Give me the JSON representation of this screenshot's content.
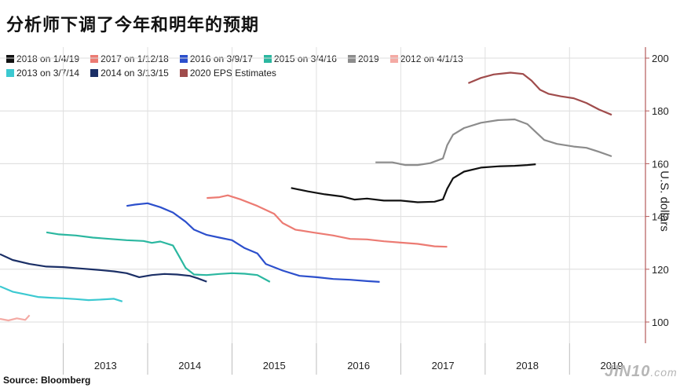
{
  "headline": "分析师下调了今年和明年的预期",
  "source": "Source: Bloomberg",
  "logo": "JIN10",
  "logo_suffix": ".com",
  "chart_data": {
    "type": "line",
    "title": "",
    "ylabel": "U.S. dollars",
    "xlabel": "",
    "ylim": [
      95,
      205
    ],
    "xlim": [
      2012.25,
      2019.9
    ],
    "y_ticks": [
      100,
      120,
      140,
      160,
      180,
      200
    ],
    "x_ticks": [
      "2013",
      "2014",
      "2015",
      "2016",
      "2017",
      "2018",
      "2019"
    ],
    "grid": true,
    "legend_position": "top-left",
    "series": [
      {
        "name": "2018  on 1/4/19",
        "color": "#111111",
        "points": [
          [
            2015.7,
            150.8
          ],
          [
            2015.9,
            149.5
          ],
          [
            2016.1,
            148.4
          ],
          [
            2016.3,
            147.6
          ],
          [
            2016.45,
            146.4
          ],
          [
            2016.6,
            146.8
          ],
          [
            2016.8,
            146.0
          ],
          [
            2017.0,
            146.0
          ],
          [
            2017.2,
            145.4
          ],
          [
            2017.4,
            145.6
          ],
          [
            2017.5,
            146.5
          ],
          [
            2017.55,
            150.5
          ],
          [
            2017.62,
            154.5
          ],
          [
            2017.75,
            157.0
          ],
          [
            2017.95,
            158.5
          ],
          [
            2018.15,
            159.0
          ],
          [
            2018.35,
            159.2
          ],
          [
            2018.5,
            159.5
          ],
          [
            2018.6,
            159.8
          ]
        ]
      },
      {
        "name": "2017  on 1/12/18",
        "color": "#ec7b73",
        "points": [
          [
            2014.7,
            147.0
          ],
          [
            2014.85,
            147.3
          ],
          [
            2014.95,
            148.0
          ],
          [
            2015.1,
            146.5
          ],
          [
            2015.3,
            144.0
          ],
          [
            2015.5,
            141.0
          ],
          [
            2015.6,
            137.5
          ],
          [
            2015.75,
            135.0
          ],
          [
            2015.95,
            134.0
          ],
          [
            2016.2,
            132.8
          ],
          [
            2016.4,
            131.5
          ],
          [
            2016.6,
            131.3
          ],
          [
            2016.8,
            130.6
          ],
          [
            2017.0,
            130.1
          ],
          [
            2017.2,
            129.6
          ],
          [
            2017.4,
            128.7
          ],
          [
            2017.55,
            128.5
          ]
        ]
      },
      {
        "name": "2016  on 3/9/17",
        "color": "#2c4fcc",
        "points": [
          [
            2013.75,
            144.0
          ],
          [
            2013.85,
            144.5
          ],
          [
            2014.0,
            145.0
          ],
          [
            2014.15,
            143.5
          ],
          [
            2014.3,
            141.5
          ],
          [
            2014.45,
            138.0
          ],
          [
            2014.55,
            135.0
          ],
          [
            2014.7,
            133.0
          ],
          [
            2014.85,
            132.0
          ],
          [
            2015.0,
            131.0
          ],
          [
            2015.15,
            128.0
          ],
          [
            2015.3,
            126.0
          ],
          [
            2015.4,
            122.0
          ],
          [
            2015.6,
            119.5
          ],
          [
            2015.8,
            117.5
          ],
          [
            2016.0,
            117.0
          ],
          [
            2016.2,
            116.3
          ],
          [
            2016.4,
            116.0
          ],
          [
            2016.6,
            115.5
          ],
          [
            2016.75,
            115.2
          ]
        ]
      },
      {
        "name": "2015  on 3/4/16",
        "color": "#2bb7a0",
        "points": [
          [
            2012.8,
            134.0
          ],
          [
            2012.95,
            133.2
          ],
          [
            2013.15,
            132.8
          ],
          [
            2013.35,
            132.0
          ],
          [
            2013.55,
            131.5
          ],
          [
            2013.75,
            131.0
          ],
          [
            2013.95,
            130.7
          ],
          [
            2014.05,
            130.0
          ],
          [
            2014.15,
            130.5
          ],
          [
            2014.3,
            129.0
          ],
          [
            2014.38,
            124.5
          ],
          [
            2014.45,
            120.5
          ],
          [
            2014.55,
            118.0
          ],
          [
            2014.7,
            117.8
          ],
          [
            2014.85,
            118.2
          ],
          [
            2015.0,
            118.5
          ],
          [
            2015.15,
            118.3
          ],
          [
            2015.3,
            117.8
          ],
          [
            2015.45,
            115.2
          ]
        ]
      },
      {
        "name": "2019",
        "color": "#8c8c8c",
        "points": [
          [
            2016.7,
            160.5
          ],
          [
            2016.9,
            160.5
          ],
          [
            2017.05,
            159.5
          ],
          [
            2017.2,
            159.5
          ],
          [
            2017.35,
            160.2
          ],
          [
            2017.5,
            162.0
          ],
          [
            2017.55,
            167.0
          ],
          [
            2017.62,
            171.0
          ],
          [
            2017.75,
            173.5
          ],
          [
            2017.95,
            175.5
          ],
          [
            2018.15,
            176.5
          ],
          [
            2018.35,
            176.8
          ],
          [
            2018.5,
            175.0
          ],
          [
            2018.6,
            172.0
          ],
          [
            2018.7,
            169.0
          ],
          [
            2018.85,
            167.5
          ],
          [
            2019.05,
            166.5
          ],
          [
            2019.2,
            166.0
          ],
          [
            2019.35,
            164.5
          ],
          [
            2019.5,
            162.8
          ]
        ]
      },
      {
        "name": "2012  on 4/1/13",
        "color": "#f4aaa4",
        "points": [
          [
            2012.25,
            101.2
          ],
          [
            2012.35,
            100.6
          ],
          [
            2012.45,
            101.4
          ],
          [
            2012.55,
            100.8
          ],
          [
            2012.6,
            102.6
          ]
        ]
      },
      {
        "name": "2013  on 3/7/14",
        "color": "#3cc9d1",
        "points": [
          [
            2012.25,
            113.5
          ],
          [
            2012.4,
            111.5
          ],
          [
            2012.55,
            110.5
          ],
          [
            2012.7,
            109.5
          ],
          [
            2012.85,
            109.2
          ],
          [
            2013.0,
            109.0
          ],
          [
            2013.15,
            108.7
          ],
          [
            2013.3,
            108.3
          ],
          [
            2013.45,
            108.5
          ],
          [
            2013.6,
            108.8
          ],
          [
            2013.7,
            107.8
          ]
        ]
      },
      {
        "name": "2014  on 3/13/15",
        "color": "#1b2f66",
        "points": [
          [
            2012.25,
            125.7
          ],
          [
            2012.4,
            123.5
          ],
          [
            2012.6,
            122.0
          ],
          [
            2012.8,
            121.0
          ],
          [
            2013.0,
            120.8
          ],
          [
            2013.2,
            120.3
          ],
          [
            2013.4,
            119.8
          ],
          [
            2013.6,
            119.2
          ],
          [
            2013.75,
            118.5
          ],
          [
            2013.9,
            117.0
          ],
          [
            2014.05,
            117.8
          ],
          [
            2014.2,
            118.2
          ],
          [
            2014.35,
            118.0
          ],
          [
            2014.5,
            117.5
          ],
          [
            2014.6,
            116.5
          ],
          [
            2014.7,
            115.3
          ]
        ]
      },
      {
        "name": "2020 EPS Estimates",
        "color": "#a04c4c",
        "points": [
          [
            2017.8,
            190.5
          ],
          [
            2017.95,
            192.5
          ],
          [
            2018.1,
            193.8
          ],
          [
            2018.3,
            194.5
          ],
          [
            2018.45,
            194.0
          ],
          [
            2018.55,
            191.5
          ],
          [
            2018.65,
            188.0
          ],
          [
            2018.75,
            186.5
          ],
          [
            2018.9,
            185.5
          ],
          [
            2019.05,
            184.8
          ],
          [
            2019.2,
            183.0
          ],
          [
            2019.35,
            180.5
          ],
          [
            2019.5,
            178.5
          ]
        ]
      }
    ]
  }
}
